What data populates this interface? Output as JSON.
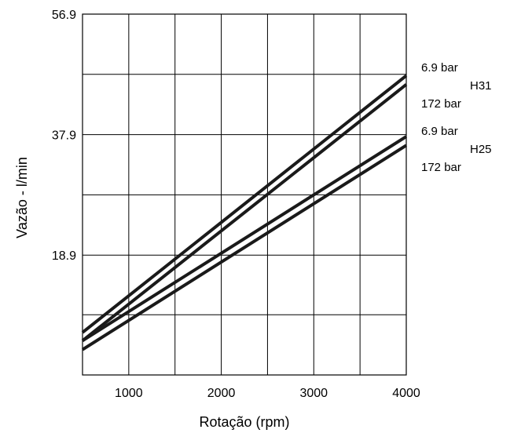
{
  "chart_data": {
    "type": "line",
    "title": "",
    "xlabel": "Rotação (rpm)",
    "ylabel": "Vazão - l/min",
    "xlim": [
      500,
      4000
    ],
    "ylim": [
      0,
      56.9
    ],
    "x_ticks": [
      {
        "value": 1000,
        "label": "1000"
      },
      {
        "value": 2000,
        "label": "2000"
      },
      {
        "value": 3000,
        "label": "3000"
      },
      {
        "value": 4000,
        "label": "4000"
      }
    ],
    "y_ticks": [
      {
        "value": 18.9,
        "label": "18.9"
      },
      {
        "value": 37.9,
        "label": "37.9"
      },
      {
        "value": 56.9,
        "label": "56.9"
      }
    ],
    "x_grid": [
      1000,
      1500,
      2000,
      2500,
      3000,
      3500
    ],
    "y_grid": [
      9.5,
      18.9,
      28.4,
      37.9,
      47.4
    ],
    "grid": true,
    "series": [
      {
        "name": "6.9 bar",
        "group": "H31",
        "x": [
          500,
          4000
        ],
        "y": [
          6.7,
          47.2
        ]
      },
      {
        "name": "172 bar",
        "group": "H31",
        "x": [
          500,
          4000
        ],
        "y": [
          5.4,
          45.8
        ]
      },
      {
        "name": "6.9 bar",
        "group": "H25",
        "x": [
          500,
          4000
        ],
        "y": [
          5.4,
          37.6
        ]
      },
      {
        "name": "172 bar",
        "group": "H25",
        "x": [
          500,
          4000
        ],
        "y": [
          4.0,
          36.2
        ]
      }
    ],
    "group_labels": [
      "H31",
      "H25"
    ]
  }
}
